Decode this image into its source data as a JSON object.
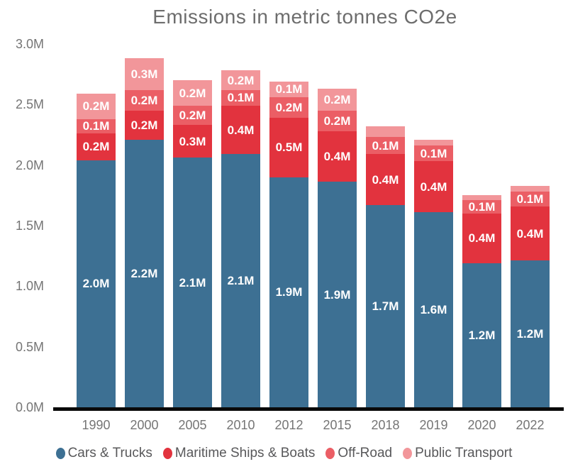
{
  "chart_data": {
    "type": "bar",
    "stacked": true,
    "title": "Emissions in metric tonnes CO2e",
    "xlabel": "",
    "ylabel": "",
    "ylim": [
      0,
      3.0
    ],
    "grid": false,
    "legend_position": "bottom",
    "axis_line_color": "#0a0a0a",
    "categories": [
      "1990",
      "2000",
      "2005",
      "2010",
      "2012",
      "2015",
      "2018",
      "2019",
      "2020",
      "2022"
    ],
    "yticks": [
      {
        "label": "0.0M",
        "value": 0.0
      },
      {
        "label": "0.5M",
        "value": 0.5
      },
      {
        "label": "1.0M",
        "value": 1.0
      },
      {
        "label": "1.5M",
        "value": 1.5
      },
      {
        "label": "2.0M",
        "value": 2.0
      },
      {
        "label": "2.5M",
        "value": 2.5
      },
      {
        "label": "3.0M",
        "value": 3.0
      }
    ],
    "series": [
      {
        "name": "Cars & Trucks",
        "color": "#3d7093",
        "values": [
          2.04,
          2.21,
          2.06,
          2.09,
          1.9,
          1.86,
          1.67,
          1.61,
          1.19,
          1.21
        ],
        "labels": [
          "2.0M",
          "2.2M",
          "2.1M",
          "2.1M",
          "1.9M",
          "1.9M",
          "1.7M",
          "1.6M",
          "1.2M",
          "1.2M"
        ]
      },
      {
        "name": "Maritime Ships & Boats",
        "color": "#e2333e",
        "values": [
          0.22,
          0.24,
          0.27,
          0.4,
          0.49,
          0.42,
          0.42,
          0.42,
          0.41,
          0.45
        ],
        "labels": [
          "0.2M",
          "0.2M",
          "0.3M",
          "0.4M",
          "0.5M",
          "0.4M",
          "0.4M",
          "0.4M",
          "0.4M",
          "0.4M"
        ]
      },
      {
        "name": "Off-Road",
        "color": "#eb5e65",
        "values": [
          0.12,
          0.17,
          0.16,
          0.13,
          0.17,
          0.17,
          0.14,
          0.13,
          0.11,
          0.12
        ],
        "labels": [
          "0.1M",
          "0.2M",
          "0.2M",
          "0.1M",
          "0.2M",
          "0.2M",
          "0.1M",
          "0.1M",
          "0.1M",
          "0.1M"
        ]
      },
      {
        "name": "Public Transport",
        "color": "#f2969a",
        "values": [
          0.21,
          0.26,
          0.21,
          0.16,
          0.13,
          0.18,
          0.09,
          0.05,
          0.04,
          0.05
        ],
        "labels": [
          "0.2M",
          "0.3M",
          "0.2M",
          "0.2M",
          "0.1M",
          "0.2M",
          "",
          "",
          "",
          ""
        ]
      }
    ]
  }
}
